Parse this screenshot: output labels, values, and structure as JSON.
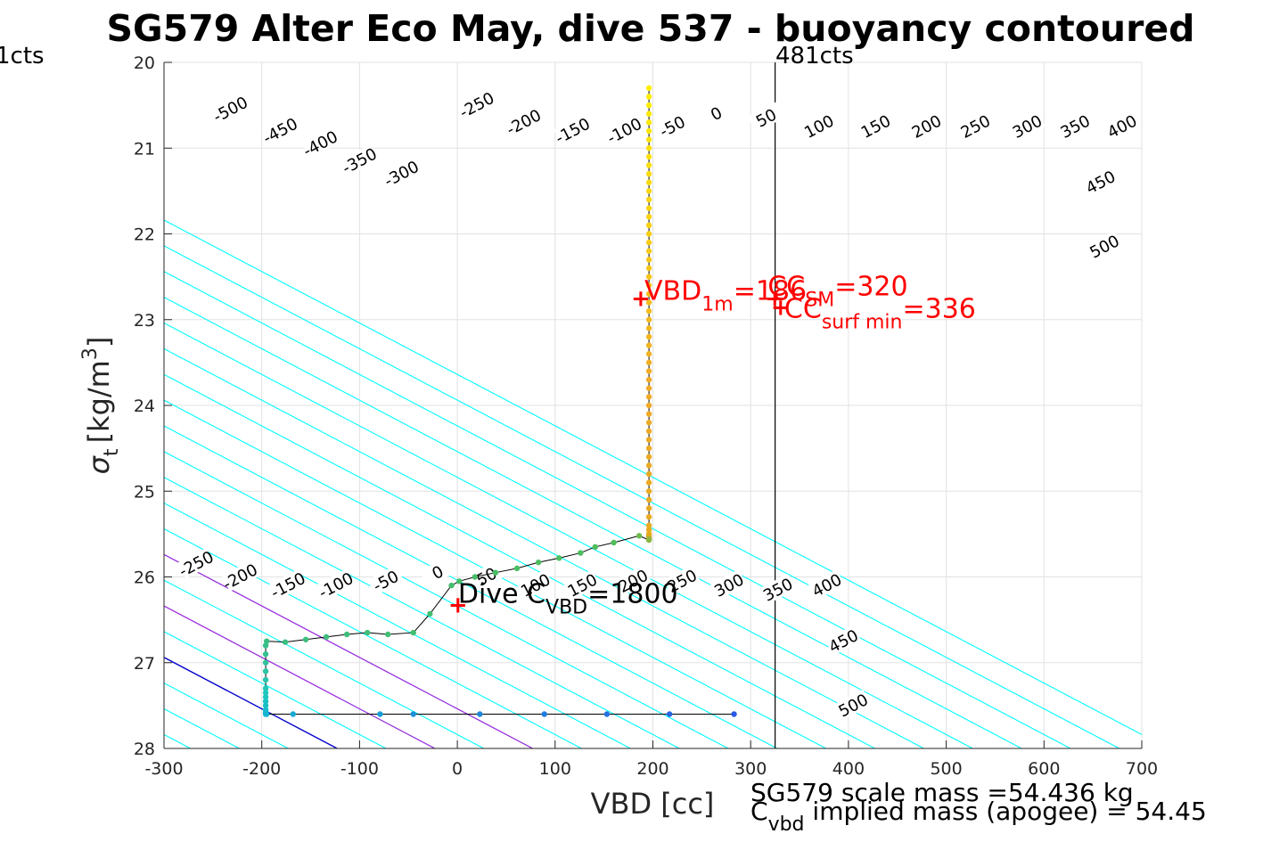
{
  "chart_data": {
    "type": "scatter",
    "title": "SG579 Alter Eco May, dive 537 - buoyancy contoured",
    "xlabel": "VBD [cc]",
    "ylabel_symbol": "σ",
    "ylabel_sub": "t",
    "ylabel_unit": "[kg/m",
    "ylabel_sup": "3",
    "ylabel_close": "]",
    "xlim": [
      -300,
      700
    ],
    "ylim": [
      20,
      28
    ],
    "y_reversed": true,
    "grid": true,
    "xticks": [
      -300,
      -200,
      -100,
      0,
      100,
      200,
      300,
      400,
      500,
      600,
      700
    ],
    "yticks": [
      20,
      21,
      22,
      23,
      24,
      25,
      26,
      27,
      28
    ],
    "colors": {
      "buoyancy_contour": "#00ffff",
      "zero_contour": "#0000cc",
      "magenta_contour": "#aa22dd",
      "profile_line": "#000000",
      "annotation_red": "#ff0000",
      "top_contour_label_color": "#000000"
    },
    "buoyancy_contours": {
      "slope_cc_per_sigma": 166.7,
      "reference_sigma": 28,
      "x_at_reference_for_zero": -123,
      "spacing_cc": 50,
      "levels": [
        -700,
        -650,
        -600,
        -550,
        -500,
        -450,
        -400,
        -350,
        -300,
        -250,
        -200,
        -150,
        -100,
        -50,
        0,
        50,
        100,
        150,
        200,
        250,
        300,
        350,
        400,
        450,
        500,
        550,
        600,
        650,
        700,
        750,
        800,
        850
      ]
    },
    "zero_contour_level": 0,
    "magenta_lines": [
      {
        "x_at_28": -23
      },
      {
        "x_at_28": 77
      }
    ],
    "top_contour_labels": [
      {
        "text": "-500",
        "x": -232,
        "y": 20.55
      },
      {
        "text": "-450",
        "x": -181,
        "y": 20.8
      },
      {
        "text": "-400",
        "x": -140,
        "y": 20.95
      },
      {
        "text": "-350",
        "x": -100,
        "y": 21.15
      },
      {
        "text": "-300",
        "x": -57,
        "y": 21.3
      },
      {
        "text": "-250",
        "x": 20,
        "y": 20.5
      },
      {
        "text": "-200",
        "x": 68,
        "y": 20.7
      },
      {
        "text": "-150",
        "x": 118,
        "y": 20.8
      },
      {
        "text": "-100",
        "x": 171,
        "y": 20.8
      },
      {
        "text": "-50",
        "x": 220,
        "y": 20.75
      },
      {
        "text": "0",
        "x": 265,
        "y": 20.6
      },
      {
        "text": "50",
        "x": 316,
        "y": 20.65
      },
      {
        "text": "100",
        "x": 370,
        "y": 20.75
      },
      {
        "text": "150",
        "x": 428,
        "y": 20.75
      },
      {
        "text": "200",
        "x": 480,
        "y": 20.75
      },
      {
        "text": "250",
        "x": 530,
        "y": 20.75
      },
      {
        "text": "300",
        "x": 583,
        "y": 20.75
      },
      {
        "text": "350",
        "x": 632,
        "y": 20.75
      },
      {
        "text": "400",
        "x": 680,
        "y": 20.75
      },
      {
        "text": "450",
        "x": 658,
        "y": 21.4
      },
      {
        "text": "500",
        "x": 662,
        "y": 22.15
      }
    ],
    "bottom_contour_labels": [
      {
        "text": "-250",
        "x": -267,
        "y": 25.85
      },
      {
        "text": "-200",
        "x": -222,
        "y": 26.0
      },
      {
        "text": "-150",
        "x": -173,
        "y": 26.1
      },
      {
        "text": "-100",
        "x": -124,
        "y": 26.1
      },
      {
        "text": "-50",
        "x": -73,
        "y": 26.05
      },
      {
        "text": "0",
        "x": -20,
        "y": 25.95
      },
      {
        "text": "50",
        "x": 30,
        "y": 26.0
      },
      {
        "text": "100",
        "x": 80,
        "y": 26.1
      },
      {
        "text": "150",
        "x": 128,
        "y": 26.1
      },
      {
        "text": "200",
        "x": 180,
        "y": 26.05
      },
      {
        "text": "250",
        "x": 230,
        "y": 26.05
      },
      {
        "text": "300",
        "x": 278,
        "y": 26.1
      },
      {
        "text": "350",
        "x": 328,
        "y": 26.15
      },
      {
        "text": "400",
        "x": 378,
        "y": 26.1
      },
      {
        "text": "450",
        "x": 395,
        "y": 26.75
      },
      {
        "text": "500",
        "x": 405,
        "y": 27.5
      }
    ],
    "profile": {
      "x": [
        196,
        196,
        196,
        196,
        196,
        196,
        196,
        196,
        196,
        196,
        196,
        196,
        196,
        196,
        196,
        196,
        196,
        196,
        196,
        196,
        196,
        196,
        196,
        196,
        196,
        196,
        196,
        196,
        196,
        196,
        196,
        196,
        196,
        196,
        196,
        196,
        196,
        196,
        196,
        196,
        196,
        196,
        196,
        196,
        196,
        196,
        196,
        196,
        196,
        196,
        196,
        196,
        196,
        196,
        196,
        196,
        196,
        196,
        196,
        186,
        160,
        141,
        126,
        104,
        83,
        61,
        39,
        18,
        2,
        -6,
        -28,
        -45,
        -71,
        -92,
        -113,
        -134,
        -155,
        -176,
        -195,
        -196,
        -196,
        -196,
        -196,
        -196,
        -196,
        -196,
        -196,
        -196,
        -196,
        -196,
        -196,
        -196,
        -195,
        -168,
        -79,
        -45,
        23,
        89,
        153,
        217,
        283
      ],
      "y": [
        20.3,
        20.4,
        20.5,
        20.6,
        20.7,
        20.8,
        20.9,
        21.0,
        21.1,
        21.2,
        21.3,
        21.4,
        21.5,
        21.6,
        21.7,
        21.8,
        21.9,
        22.0,
        22.1,
        22.2,
        22.3,
        22.4,
        22.5,
        22.6,
        22.7,
        22.8,
        22.9,
        23.0,
        23.1,
        23.2,
        23.3,
        23.4,
        23.5,
        23.6,
        23.7,
        23.8,
        23.9,
        24.0,
        24.1,
        24.2,
        24.3,
        24.4,
        24.5,
        24.6,
        24.7,
        24.8,
        24.9,
        25.0,
        25.1,
        25.2,
        25.3,
        25.4,
        25.45,
        25.5,
        25.52,
        25.54,
        25.55,
        25.56,
        25.57,
        25.52,
        25.6,
        25.65,
        25.72,
        25.78,
        25.83,
        25.9,
        25.95,
        26.0,
        26.05,
        26.1,
        26.43,
        26.65,
        26.67,
        26.65,
        26.67,
        26.7,
        26.73,
        26.76,
        26.75,
        26.8,
        26.9,
        27.0,
        27.1,
        27.2,
        27.3,
        27.35,
        27.4,
        27.45,
        27.5,
        27.55,
        27.58,
        27.6,
        27.6,
        27.6,
        27.6,
        27.6,
        27.6,
        27.6,
        27.6,
        27.6,
        27.6
      ]
    },
    "vertical_line": {
      "x": 325,
      "label": "481cts"
    },
    "left_edge_label": "1cts",
    "annotations": [
      {
        "id": "vbd1m",
        "x": 185,
        "y": 22.75,
        "text": "VBD",
        "sub": "1m",
        "text2": "=186"
      },
      {
        "id": "ccsm",
        "x": 322,
        "y": 22.75,
        "text": "CC",
        "sub": "SM",
        "text2": "=320"
      },
      {
        "id": "ccsurf",
        "x": 328,
        "y": 22.85,
        "text": "CC",
        "sub": "surf min",
        "text2": "=336"
      },
      {
        "id": "dive",
        "x": -2,
        "y": 26.32,
        "text": "Dive C",
        "sub": "VBD",
        "text2": "=1800"
      }
    ],
    "footer": {
      "line1": "SG579 scale mass =54.436 kg",
      "line2_prefix": "C",
      "line2_sub": "vbd",
      "line2_suffix": " implied mass (apogee) = 54.45"
    }
  }
}
